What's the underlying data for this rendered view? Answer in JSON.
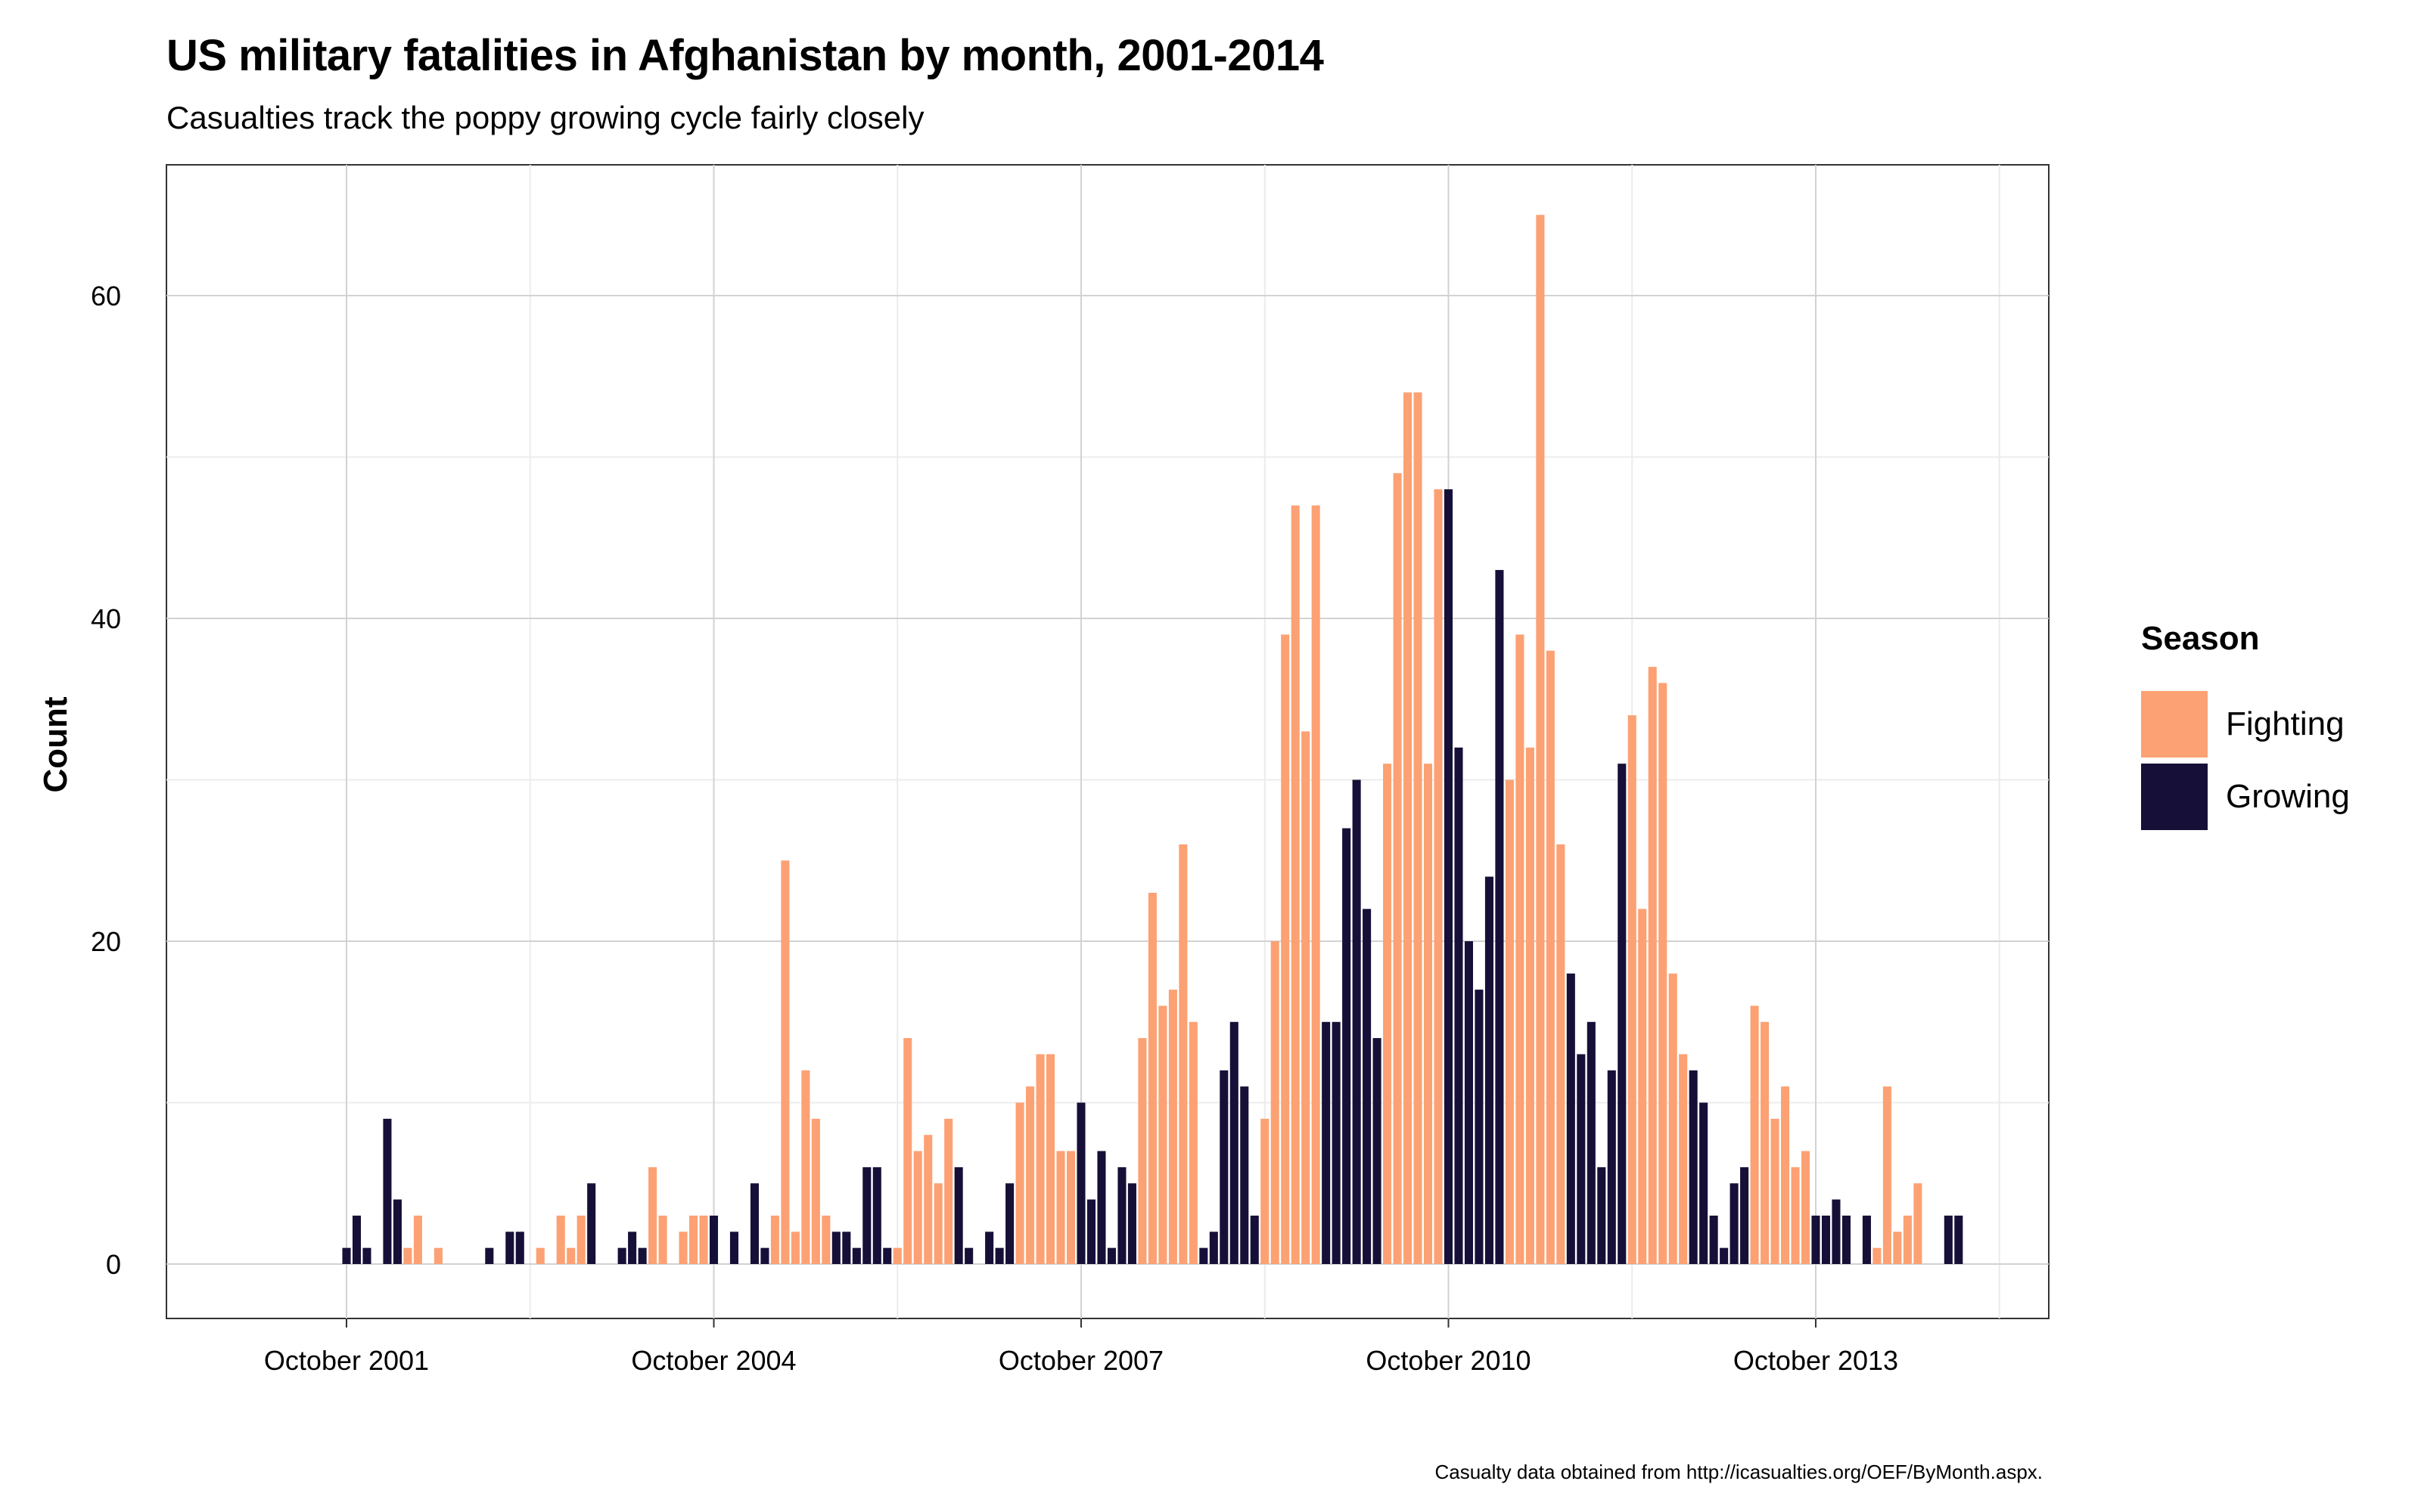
{
  "title": "US military fatalities in Afghanistan by month, 2001-2014",
  "subtitle": "Casualties track the poppy growing cycle fairly closely",
  "caption": "Casualty data obtained from http://icasualties.org/OEF/ByMonth.aspx.",
  "colors": {
    "Fighting": "#FCA173",
    "Growing": "#161038"
  },
  "chart_data": {
    "type": "bar",
    "title": "US military fatalities in Afghanistan by month, 2001-2014",
    "subtitle": "Casualties track the poppy growing cycle fairly closely",
    "xlabel": "",
    "ylabel": "Count",
    "ylim": [
      0,
      70
    ],
    "yticks": [
      0,
      20,
      40,
      60
    ],
    "xticks": [
      "October 2001",
      "October 2004",
      "October 2007",
      "October 2010",
      "October 2013"
    ],
    "grid": true,
    "legend": {
      "title": "Season",
      "position": "right",
      "entries": [
        "Fighting",
        "Growing"
      ]
    },
    "season_rule": "Fighting = April–September, Growing = October–March",
    "series": [
      {
        "name": "US military fatalities",
        "months": [
          [
            "2001-10",
            1
          ],
          [
            "2001-11",
            3
          ],
          [
            "2001-12",
            1
          ],
          [
            "2002-01",
            0
          ],
          [
            "2002-02",
            9
          ],
          [
            "2002-03",
            4
          ],
          [
            "2002-04",
            1
          ],
          [
            "2002-05",
            3
          ],
          [
            "2002-06",
            0
          ],
          [
            "2002-07",
            1
          ],
          [
            "2002-08",
            0
          ],
          [
            "2002-09",
            0
          ],
          [
            "2002-10",
            0
          ],
          [
            "2002-11",
            0
          ],
          [
            "2002-12",
            1
          ],
          [
            "2003-01",
            0
          ],
          [
            "2003-02",
            2
          ],
          [
            "2003-03",
            2
          ],
          [
            "2003-04",
            0
          ],
          [
            "2003-05",
            1
          ],
          [
            "2003-06",
            0
          ],
          [
            "2003-07",
            3
          ],
          [
            "2003-08",
            1
          ],
          [
            "2003-09",
            3
          ],
          [
            "2003-10",
            5
          ],
          [
            "2003-11",
            0
          ],
          [
            "2003-12",
            0
          ],
          [
            "2004-01",
            1
          ],
          [
            "2004-02",
            2
          ],
          [
            "2004-03",
            1
          ],
          [
            "2004-04",
            6
          ],
          [
            "2004-05",
            3
          ],
          [
            "2004-06",
            0
          ],
          [
            "2004-07",
            2
          ],
          [
            "2004-08",
            3
          ],
          [
            "2004-09",
            3
          ],
          [
            "2004-10",
            3
          ],
          [
            "2004-11",
            0
          ],
          [
            "2004-12",
            2
          ],
          [
            "2005-01",
            0
          ],
          [
            "2005-02",
            5
          ],
          [
            "2005-03",
            1
          ],
          [
            "2005-04",
            3
          ],
          [
            "2005-05",
            25
          ],
          [
            "2005-06",
            2
          ],
          [
            "2005-07",
            12
          ],
          [
            "2005-08",
            9
          ],
          [
            "2005-09",
            3
          ],
          [
            "2005-10",
            2
          ],
          [
            "2005-11",
            2
          ],
          [
            "2005-12",
            1
          ],
          [
            "2006-01",
            6
          ],
          [
            "2006-02",
            6
          ],
          [
            "2006-03",
            1
          ],
          [
            "2006-04",
            1
          ],
          [
            "2006-05",
            14
          ],
          [
            "2006-06",
            7
          ],
          [
            "2006-07",
            8
          ],
          [
            "2006-08",
            5
          ],
          [
            "2006-09",
            9
          ],
          [
            "2006-10",
            6
          ],
          [
            "2006-11",
            1
          ],
          [
            "2006-12",
            0
          ],
          [
            "2007-01",
            2
          ],
          [
            "2007-02",
            1
          ],
          [
            "2007-03",
            5
          ],
          [
            "2007-04",
            10
          ],
          [
            "2007-05",
            11
          ],
          [
            "2007-06",
            13
          ],
          [
            "2007-07",
            13
          ],
          [
            "2007-08",
            7
          ],
          [
            "2007-09",
            7
          ],
          [
            "2007-10",
            10
          ],
          [
            "2007-11",
            4
          ],
          [
            "2007-12",
            7
          ],
          [
            "2008-01",
            1
          ],
          [
            "2008-02",
            6
          ],
          [
            "2008-03",
            5
          ],
          [
            "2008-04",
            14
          ],
          [
            "2008-05",
            23
          ],
          [
            "2008-06",
            16
          ],
          [
            "2008-07",
            17
          ],
          [
            "2008-08",
            26
          ],
          [
            "2008-09",
            15
          ],
          [
            "2008-10",
            1
          ],
          [
            "2008-11",
            2
          ],
          [
            "2008-12",
            12
          ],
          [
            "2009-01",
            15
          ],
          [
            "2009-02",
            11
          ],
          [
            "2009-03",
            3
          ],
          [
            "2009-04",
            9
          ],
          [
            "2009-05",
            20
          ],
          [
            "2009-06",
            39
          ],
          [
            "2009-07",
            47
          ],
          [
            "2009-08",
            33
          ],
          [
            "2009-09",
            47
          ],
          [
            "2009-10",
            15
          ],
          [
            "2009-11",
            15
          ],
          [
            "2009-12",
            27
          ],
          [
            "2010-01",
            30
          ],
          [
            "2010-02",
            22
          ],
          [
            "2010-03",
            14
          ],
          [
            "2010-04",
            31
          ],
          [
            "2010-05",
            49
          ],
          [
            "2010-06",
            54
          ],
          [
            "2010-07",
            54
          ],
          [
            "2010-08",
            31
          ],
          [
            "2010-09",
            48
          ],
          [
            "2010-10",
            48
          ],
          [
            "2010-11",
            32
          ],
          [
            "2010-12",
            20
          ],
          [
            "2011-01",
            17
          ],
          [
            "2011-02",
            24
          ],
          [
            "2011-03",
            43
          ],
          [
            "2011-04",
            30
          ],
          [
            "2011-05",
            39
          ],
          [
            "2011-06",
            32
          ],
          [
            "2011-07",
            65
          ],
          [
            "2011-08",
            38
          ],
          [
            "2011-09",
            26
          ],
          [
            "2011-10",
            18
          ],
          [
            "2011-11",
            13
          ],
          [
            "2011-12",
            15
          ],
          [
            "2012-01",
            6
          ],
          [
            "2012-02",
            12
          ],
          [
            "2012-03",
            31
          ],
          [
            "2012-04",
            34
          ],
          [
            "2012-05",
            22
          ],
          [
            "2012-06",
            37
          ],
          [
            "2012-07",
            36
          ],
          [
            "2012-08",
            18
          ],
          [
            "2012-09",
            13
          ],
          [
            "2012-10",
            12
          ],
          [
            "2012-11",
            10
          ],
          [
            "2012-12",
            3
          ],
          [
            "2013-01",
            1
          ],
          [
            "2013-02",
            5
          ],
          [
            "2013-03",
            6
          ],
          [
            "2013-04",
            16
          ],
          [
            "2013-05",
            15
          ],
          [
            "2013-06",
            9
          ],
          [
            "2013-07",
            11
          ],
          [
            "2013-08",
            6
          ],
          [
            "2013-09",
            7
          ],
          [
            "2013-10",
            3
          ],
          [
            "2013-11",
            3
          ],
          [
            "2013-12",
            4
          ],
          [
            "2014-01",
            3
          ],
          [
            "2014-02",
            0
          ],
          [
            "2014-03",
            3
          ],
          [
            "2014-04",
            1
          ],
          [
            "2014-05",
            11
          ],
          [
            "2014-06",
            2
          ],
          [
            "2014-07",
            3
          ],
          [
            "2014-08",
            5
          ],
          [
            "2014-09",
            0
          ],
          [
            "2014-10",
            0
          ],
          [
            "2014-11",
            3
          ],
          [
            "2014-12",
            3
          ]
        ]
      }
    ]
  }
}
